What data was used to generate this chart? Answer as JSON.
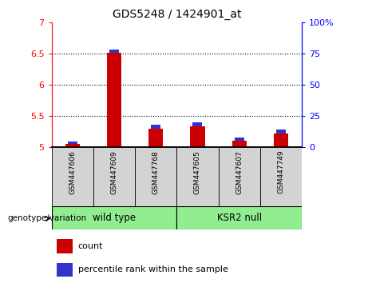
{
  "title": "GDS5248 / 1424901_at",
  "samples": [
    "GSM447606",
    "GSM447609",
    "GSM447768",
    "GSM447605",
    "GSM447607",
    "GSM447749"
  ],
  "red_values": [
    5.05,
    6.52,
    5.3,
    5.33,
    5.1,
    5.22
  ],
  "blue_values": [
    0.04,
    0.05,
    0.06,
    0.07,
    0.05,
    0.06
  ],
  "ymin": 5.0,
  "ymax": 7.0,
  "yticks": [
    5.0,
    5.5,
    6.0,
    6.5,
    7.0
  ],
  "ytick_labels": [
    "5",
    "5.5",
    "6",
    "6.5",
    "7"
  ],
  "right_yticks": [
    0,
    25,
    50,
    75,
    100
  ],
  "right_ytick_labels": [
    "0",
    "25",
    "50",
    "75",
    "100%"
  ],
  "bar_color_red": "#cc0000",
  "bar_color_blue": "#3333cc",
  "bar_width": 0.35,
  "bg_sample_row": "#d3d3d3",
  "bg_wt": "#90ee90",
  "bg_ksr2": "#90ee90",
  "legend_count_label": "count",
  "legend_pct_label": "percentile rank within the sample",
  "xlabel_left": "genotype/variation",
  "grid_lines": [
    5.5,
    6.0,
    6.5
  ],
  "wt_samples": [
    0,
    1,
    2
  ],
  "ksr2_samples": [
    3,
    4,
    5
  ]
}
